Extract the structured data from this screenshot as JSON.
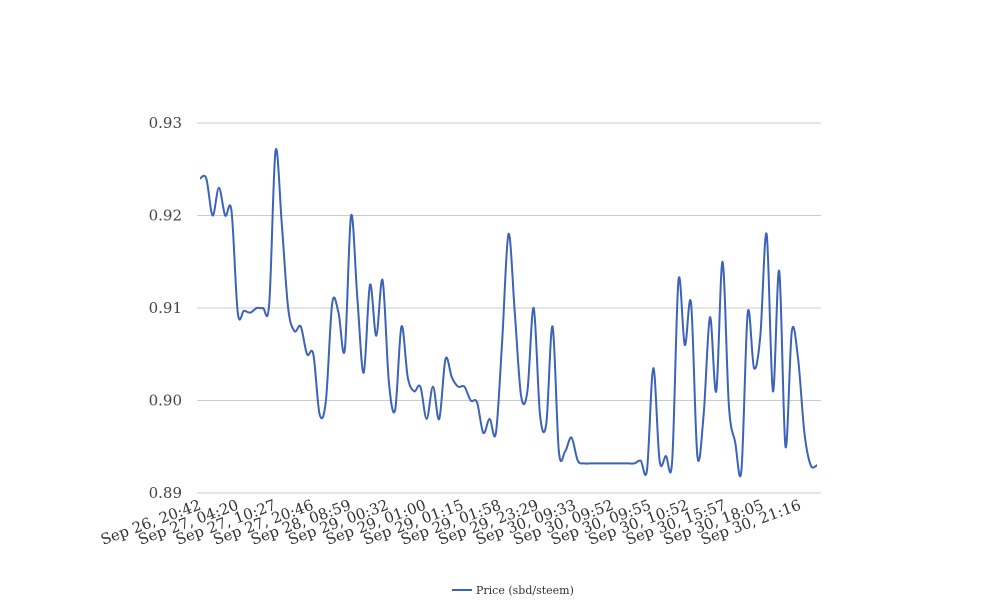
{
  "chart_data": {
    "type": "line",
    "title": "",
    "xlabel": "",
    "ylabel": "",
    "ylim": [
      0.89,
      0.93
    ],
    "yticks": [
      "0.93",
      "0.92",
      "0.91",
      "0.90",
      "0.89"
    ],
    "ytick_values": [
      0.93,
      0.92,
      0.91,
      0.9,
      0.89
    ],
    "xtick_labels": [
      "Sep 26, 20:42",
      "Sep 27, 04:20",
      "Sep 27, 10:27",
      "Sep 27, 20:46",
      "Sep 28, 08:59",
      "Sep 29, 00:32",
      "Sep 29, 01:00",
      "Sep 29, 01:15",
      "Sep 29, 01:58",
      "Sep 29, 23:29",
      "Sep 30, 09:33",
      "Sep 30, 09:52",
      "Sep 30, 09:55",
      "Sep 30, 10:52",
      "Sep 30, 15:57",
      "Sep 30, 18:05",
      "Sep 30, 21:16"
    ],
    "grid": true,
    "legend_position": "bottom",
    "series": [
      {
        "name": "Price (sbd/steem)",
        "color": "#3b63b8",
        "values": [
          0.924,
          0.924,
          0.92,
          0.923,
          0.92,
          0.9205,
          0.9095,
          0.9097,
          0.9095,
          0.91,
          0.91,
          0.9105,
          0.927,
          0.919,
          0.91,
          0.9075,
          0.908,
          0.905,
          0.905,
          0.8985,
          0.9,
          0.9105,
          0.9095,
          0.9055,
          0.92,
          0.911,
          0.903,
          0.9125,
          0.907,
          0.913,
          0.902,
          0.899,
          0.908,
          0.9025,
          0.901,
          0.9015,
          0.898,
          0.9015,
          0.898,
          0.9045,
          0.9025,
          0.9015,
          0.9015,
          0.9,
          0.8998,
          0.8965,
          0.898,
          0.8965,
          0.9065,
          0.918,
          0.9095,
          0.9005,
          0.901,
          0.91,
          0.8985,
          0.8975,
          0.908,
          0.8945,
          0.8945,
          0.896,
          0.8935,
          0.8932,
          0.8932,
          0.8932,
          0.8932,
          0.8932,
          0.8932,
          0.8932,
          0.8932,
          0.8932,
          0.8935,
          0.8925,
          0.9035,
          0.8935,
          0.894,
          0.8935,
          0.913,
          0.906,
          0.9105,
          0.894,
          0.8985,
          0.909,
          0.901,
          0.915,
          0.8995,
          0.8955,
          0.8925,
          0.9095,
          0.9035,
          0.907,
          0.918,
          0.901,
          0.914,
          0.895,
          0.9075,
          0.9045,
          0.8965,
          0.893,
          0.893
        ]
      }
    ]
  }
}
